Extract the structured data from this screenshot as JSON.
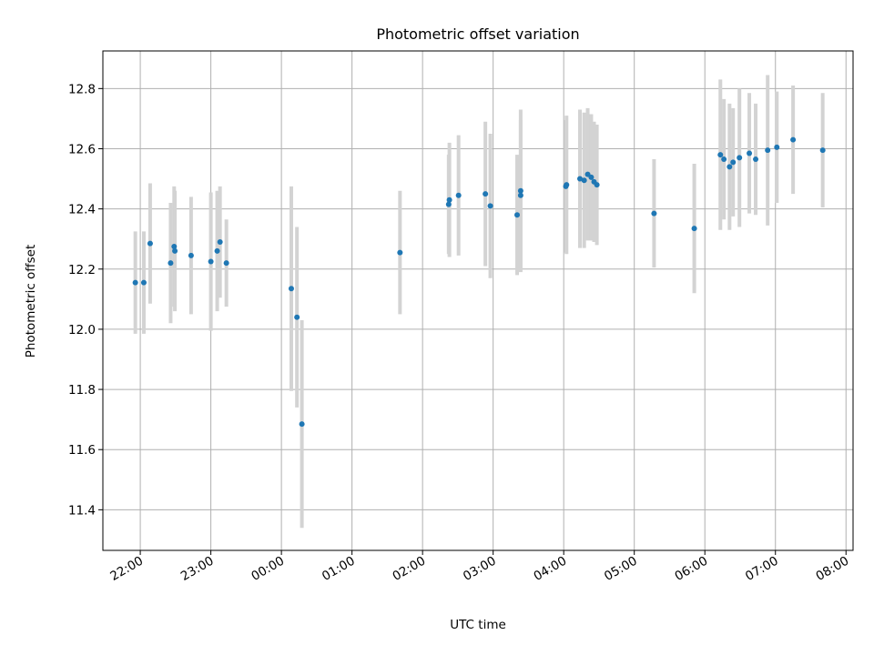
{
  "chart_data": {
    "type": "scatter",
    "title": "Photometric offset variation",
    "xlabel": "UTC time",
    "ylabel": "Photometric offset",
    "xlim_hours": [
      -2.53,
      8.1
    ],
    "ylim": [
      11.265,
      12.925
    ],
    "grid": true,
    "x_unit": "hours relative to midnight UTC",
    "xticks": [
      {
        "value": -2,
        "label": "22:00"
      },
      {
        "value": -1,
        "label": "23:00"
      },
      {
        "value": 0,
        "label": "00:00"
      },
      {
        "value": 1,
        "label": "01:00"
      },
      {
        "value": 2,
        "label": "02:00"
      },
      {
        "value": 3,
        "label": "03:00"
      },
      {
        "value": 4,
        "label": "04:00"
      },
      {
        "value": 5,
        "label": "05:00"
      },
      {
        "value": 6,
        "label": "06:00"
      },
      {
        "value": 7,
        "label": "07:00"
      },
      {
        "value": 8,
        "label": "08:00"
      }
    ],
    "yticks": [
      {
        "value": 11.4,
        "label": "11.4"
      },
      {
        "value": 11.6,
        "label": "11.6"
      },
      {
        "value": 11.8,
        "label": "11.8"
      },
      {
        "value": 12.0,
        "label": "12.0"
      },
      {
        "value": 12.2,
        "label": "12.2"
      },
      {
        "value": 12.4,
        "label": "12.4"
      },
      {
        "value": 12.6,
        "label": "12.6"
      },
      {
        "value": 12.8,
        "label": "12.8"
      }
    ],
    "colors": {
      "points": "#1f77b4",
      "errorbars": "#d3d3d3",
      "grid": "#b0b0b0"
    },
    "points": [
      {
        "x": -2.07,
        "y": 12.155,
        "err": 0.17
      },
      {
        "x": -1.95,
        "y": 12.155,
        "err": 0.17
      },
      {
        "x": -1.86,
        "y": 12.285,
        "err": 0.2
      },
      {
        "x": -1.57,
        "y": 12.22,
        "err": 0.2
      },
      {
        "x": -1.52,
        "y": 12.275,
        "err": 0.2
      },
      {
        "x": -1.51,
        "y": 12.26,
        "err": 0.2
      },
      {
        "x": -1.28,
        "y": 12.245,
        "err": 0.195
      },
      {
        "x": -1.0,
        "y": 12.225,
        "err": 0.23
      },
      {
        "x": -0.91,
        "y": 12.26,
        "err": 0.2
      },
      {
        "x": -0.87,
        "y": 12.29,
        "err": 0.185
      },
      {
        "x": -0.78,
        "y": 12.22,
        "err": 0.145
      },
      {
        "x": 0.14,
        "y": 12.135,
        "err": 0.34
      },
      {
        "x": 0.22,
        "y": 12.04,
        "err": 0.3
      },
      {
        "x": 0.29,
        "y": 11.685,
        "err": 0.345
      },
      {
        "x": 1.68,
        "y": 12.255,
        "err": 0.205
      },
      {
        "x": 2.37,
        "y": 12.415,
        "err": 0.165
      },
      {
        "x": 2.38,
        "y": 12.43,
        "err": 0.19
      },
      {
        "x": 2.51,
        "y": 12.445,
        "err": 0.2
      },
      {
        "x": 2.89,
        "y": 12.45,
        "err": 0.24
      },
      {
        "x": 2.96,
        "y": 12.41,
        "err": 0.24
      },
      {
        "x": 3.34,
        "y": 12.38,
        "err": 0.2
      },
      {
        "x": 3.39,
        "y": 12.46,
        "err": 0.27
      },
      {
        "x": 3.39,
        "y": 12.445,
        "err": 0.25
      },
      {
        "x": 4.03,
        "y": 12.475,
        "err": 0.22
      },
      {
        "x": 4.04,
        "y": 12.48,
        "err": 0.23
      },
      {
        "x": 4.23,
        "y": 12.5,
        "err": 0.23
      },
      {
        "x": 4.29,
        "y": 12.495,
        "err": 0.225
      },
      {
        "x": 4.34,
        "y": 12.515,
        "err": 0.22
      },
      {
        "x": 4.39,
        "y": 12.505,
        "err": 0.21
      },
      {
        "x": 4.43,
        "y": 12.49,
        "err": 0.2
      },
      {
        "x": 4.47,
        "y": 12.48,
        "err": 0.2
      },
      {
        "x": 5.28,
        "y": 12.385,
        "err": 0.18
      },
      {
        "x": 5.85,
        "y": 12.335,
        "err": 0.215
      },
      {
        "x": 6.22,
        "y": 12.58,
        "err": 0.25
      },
      {
        "x": 6.27,
        "y": 12.565,
        "err": 0.2
      },
      {
        "x": 6.35,
        "y": 12.54,
        "err": 0.21
      },
      {
        "x": 6.4,
        "y": 12.555,
        "err": 0.18
      },
      {
        "x": 6.49,
        "y": 12.57,
        "err": 0.23
      },
      {
        "x": 6.63,
        "y": 12.585,
        "err": 0.2
      },
      {
        "x": 6.72,
        "y": 12.565,
        "err": 0.185
      },
      {
        "x": 6.89,
        "y": 12.595,
        "err": 0.25
      },
      {
        "x": 7.02,
        "y": 12.605,
        "err": 0.185
      },
      {
        "x": 7.25,
        "y": 12.63,
        "err": 0.18
      },
      {
        "x": 7.67,
        "y": 12.595,
        "err": 0.19
      }
    ]
  }
}
